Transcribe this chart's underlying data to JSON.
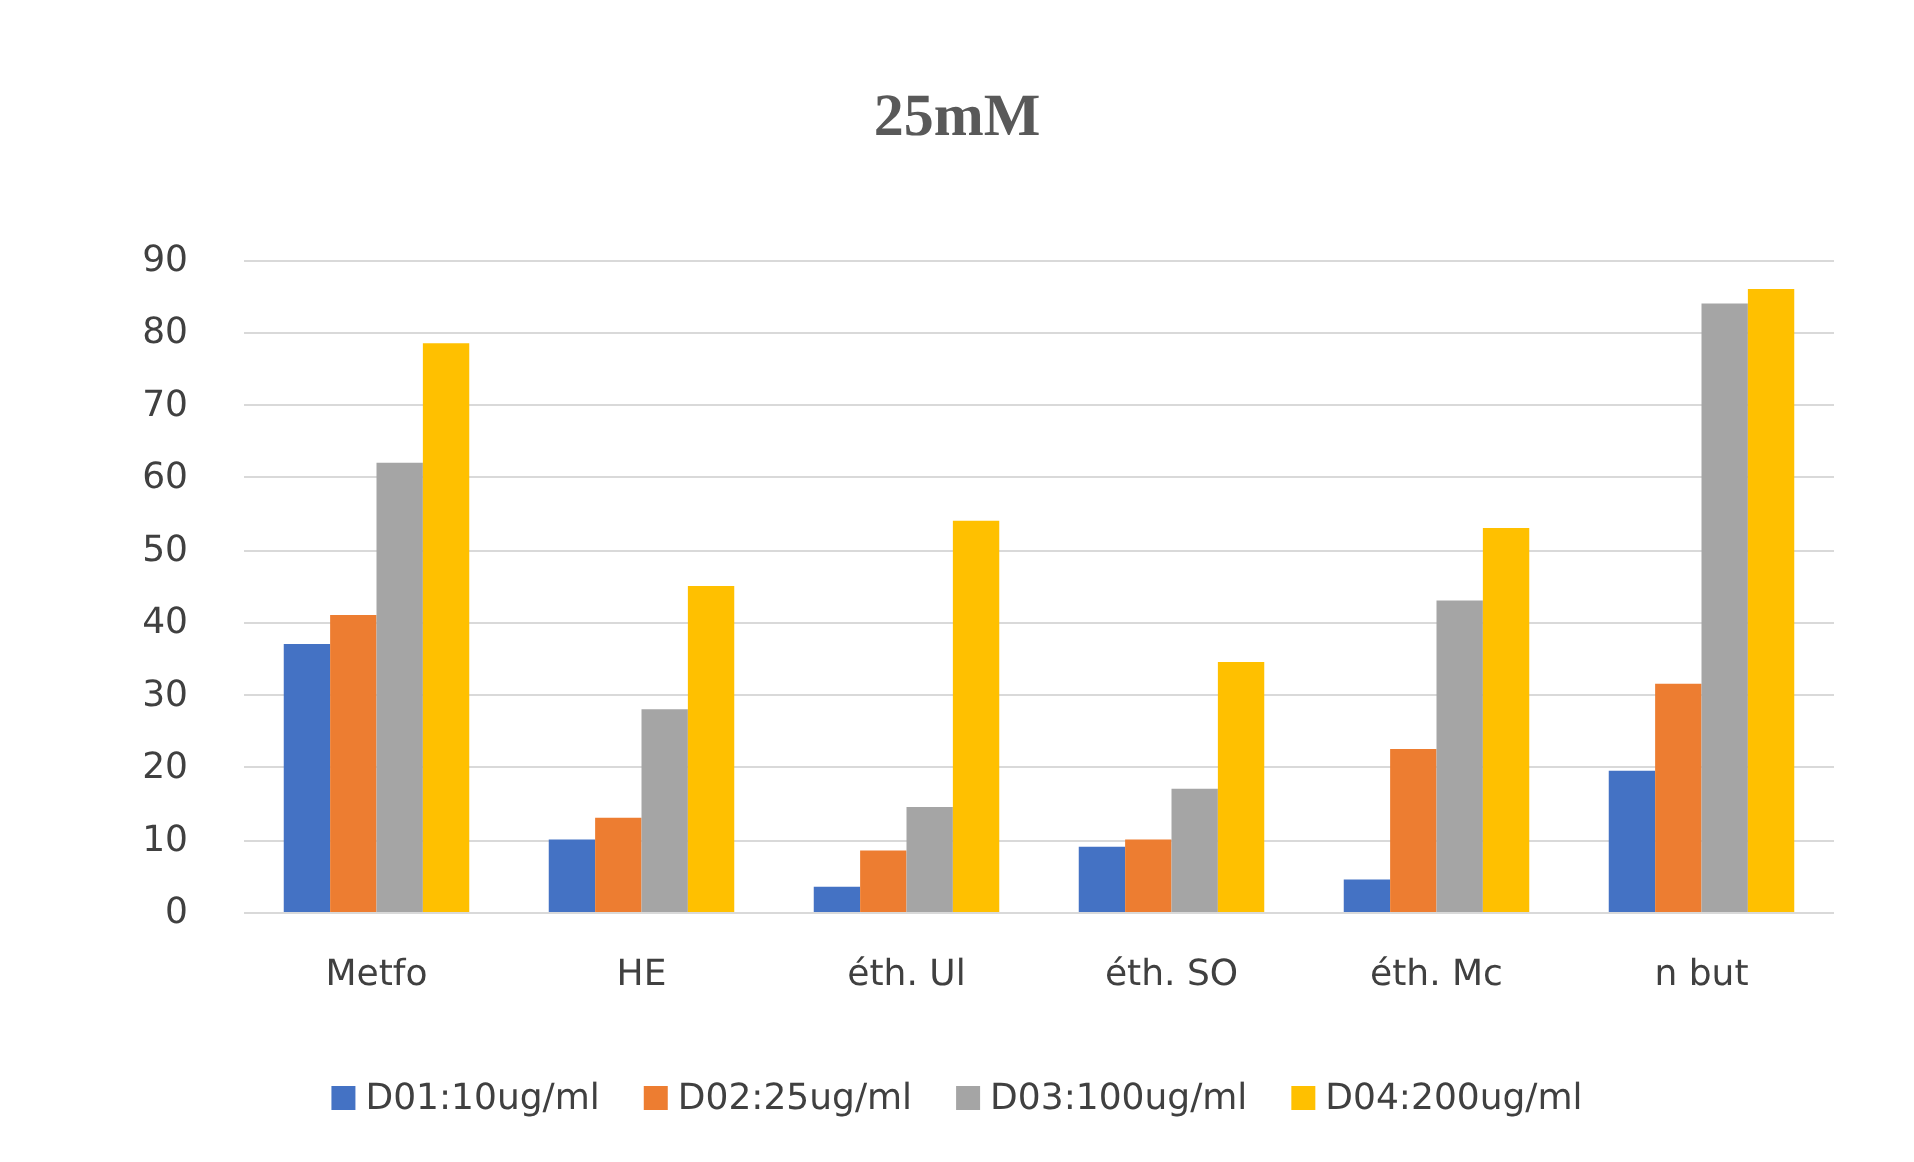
{
  "chart_data": {
    "type": "bar",
    "title": "25mM",
    "categories": [
      "Metfo",
      "HE",
      "éth. Ul",
      "éth. SO",
      "éth. Mc",
      "n but"
    ],
    "series": [
      {
        "name": "D01:10ug/ml",
        "color": "#4472c4",
        "values": [
          37,
          10,
          3.5,
          9,
          4.5,
          19.5
        ]
      },
      {
        "name": "D02:25ug/ml",
        "color": "#ed7d31",
        "values": [
          41,
          13,
          8.5,
          10,
          22.5,
          31.5
        ]
      },
      {
        "name": "D03:100ug/ml",
        "color": "#a5a5a5",
        "values": [
          62,
          28,
          14.5,
          17,
          43,
          84
        ]
      },
      {
        "name": "D04:200ug/ml",
        "color": "#ffc000",
        "values": [
          78.5,
          45,
          54,
          34.5,
          53,
          86
        ]
      }
    ],
    "ylim": [
      0,
      90
    ],
    "yticks": [
      0,
      10,
      20,
      30,
      40,
      50,
      60,
      70,
      80,
      90
    ],
    "grid": "y",
    "legend": "bottom"
  }
}
